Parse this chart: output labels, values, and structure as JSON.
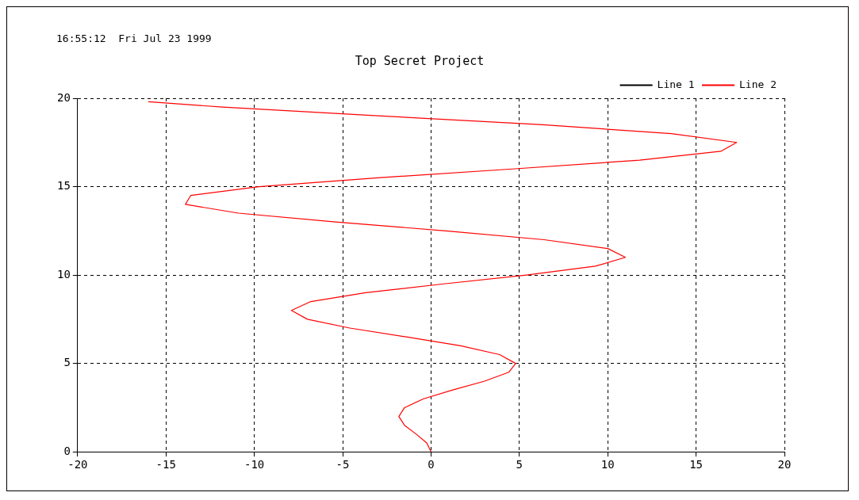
{
  "chart_data": {
    "type": "line",
    "title": "Top Secret Project",
    "annotations": [
      "16:55:12  Fri Jul 23 1999"
    ],
    "xlim": [
      -20,
      20
    ],
    "xticks": [
      -20,
      -15,
      -10,
      -5,
      0,
      5,
      10,
      15,
      20
    ],
    "ylim": [
      0,
      20
    ],
    "yticks": [
      0,
      5,
      10,
      15,
      20
    ],
    "grid": true,
    "legend": "top right",
    "marker": "none",
    "series": [
      {
        "name": "Line 1",
        "color": "#000000"
      },
      {
        "name": "Line 2",
        "color": "#ff0000",
        "x": [
          0,
          -0.24,
          -0.84,
          -1.5,
          -1.82,
          -1.5,
          -0.42,
          1.23,
          3.03,
          4.4,
          4.79,
          3.88,
          1.68,
          -1.4,
          -4.6,
          -7.0,
          -7.9,
          -6.8,
          -3.7,
          0.72,
          5.4,
          9.3,
          11.0,
          10.0,
          6.4,
          0.83,
          -5.4,
          -10.9,
          -13.9,
          -13.6,
          -9.75,
          -3.0,
          4.6,
          11.8,
          16.4,
          17.3,
          13.6,
          6.3,
          -2.8,
          -11.8,
          -16.0
        ],
        "values": [
          0,
          0.5,
          1,
          1.5,
          2,
          2.5,
          3,
          3.5,
          4,
          4.5,
          5,
          5.5,
          6,
          6.5,
          7,
          7.5,
          8,
          8.5,
          9,
          9.5,
          10,
          10.5,
          11,
          11.5,
          12,
          12.5,
          13,
          13.5,
          14,
          14.5,
          15,
          15.5,
          16,
          16.5,
          17,
          17.5,
          18,
          18.5,
          19,
          19.5,
          19.8
        ]
      }
    ]
  }
}
